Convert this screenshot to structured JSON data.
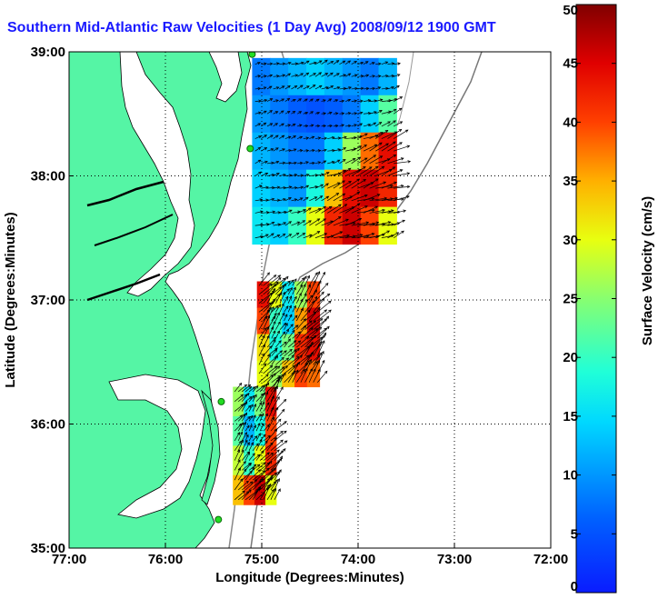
{
  "chart_data": {
    "type": "heatmap",
    "title": "Southern Mid-Atlantic Raw Velocities (1 Day Avg) 2008/09/12 1900 GMT",
    "xlabel": "Longitude (Degrees:Minutes)",
    "ylabel": "Latitude (Degrees:Minutes)",
    "xlim": [
      -77,
      -72
    ],
    "ylim": [
      35,
      39
    ],
    "x_ticks": [
      {
        "value": -77,
        "label": "77:00"
      },
      {
        "value": -76,
        "label": "76:00"
      },
      {
        "value": -75,
        "label": "75:00"
      },
      {
        "value": -74,
        "label": "74:00"
      },
      {
        "value": -73,
        "label": "73:00"
      },
      {
        "value": -72,
        "label": "72:00"
      }
    ],
    "y_ticks": [
      {
        "value": 35,
        "label": "35:00"
      },
      {
        "value": 36,
        "label": "36:00"
      },
      {
        "value": 37,
        "label": "37:00"
      },
      {
        "value": 38,
        "label": "38:00"
      },
      {
        "value": 39,
        "label": "39:00"
      }
    ],
    "grid": true,
    "colorbar": {
      "label": "Surface Velocity (cm/s)",
      "range": [
        0,
        50
      ],
      "ticks": [
        "0",
        "5",
        "10",
        "15",
        "20",
        "25",
        "30",
        "35",
        "40",
        "45",
        "50"
      ],
      "colormap": "jet"
    },
    "stations": [
      {
        "lon": -75.1,
        "lat": 38.98
      },
      {
        "lon": -75.12,
        "lat": 38.22
      },
      {
        "lon": -75.42,
        "lat": 36.18
      },
      {
        "lon": -75.45,
        "lat": 35.23
      }
    ],
    "regions": [
      {
        "name": "",
        "speed_cm_s": [
          [
            8,
            10,
            12,
            14,
            12,
            10,
            8,
            12
          ],
          [
            10,
            8,
            6,
            5,
            6,
            8,
            14,
            22
          ],
          [
            12,
            10,
            8,
            8,
            14,
            26,
            38,
            44
          ],
          [
            14,
            12,
            10,
            18,
            34,
            44,
            46,
            42
          ],
          [
            16,
            14,
            20,
            30,
            42,
            46,
            40,
            30
          ]
        ],
        "lon_range": [
          -75.1,
          -73.6
        ],
        "lat_range": [
          37.45,
          38.95
        ]
      },
      {
        "name": "",
        "speed_cm_s": [
          [
            44,
            30,
            16,
            26,
            40
          ],
          [
            40,
            20,
            14,
            36,
            46
          ],
          [
            32,
            18,
            24,
            42,
            44
          ],
          [
            30,
            26,
            34,
            40,
            38
          ]
        ],
        "lon_range": [
          -75.05,
          -74.4
        ],
        "lat_range": [
          36.3,
          37.15
        ]
      },
      {
        "name": "",
        "speed_cm_s": [
          [
            26,
            16,
            24,
            44
          ],
          [
            22,
            12,
            18,
            40
          ],
          [
            28,
            20,
            30,
            42
          ],
          [
            34,
            40,
            46,
            30
          ]
        ],
        "lon_range": [
          -75.3,
          -74.85
        ],
        "lat_range": [
          35.35,
          36.3
        ]
      }
    ]
  }
}
